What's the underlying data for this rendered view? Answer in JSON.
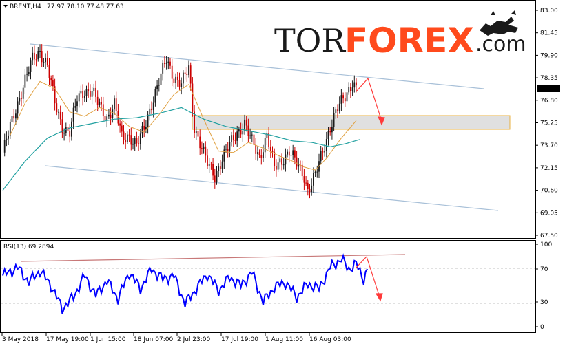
{
  "header": {
    "symbol_label": "BRENT,H4",
    "ohlc": "77.97 78.10 77.48 77.63"
  },
  "logo": {
    "part1": "TOR",
    "part2": "FOREX",
    "part3": ".com",
    "accent": "#ff4a1c",
    "icon": "bull-bear-icon"
  },
  "rsi_panel": {
    "label": "RSI(13) 69.2894",
    "line_color": "#0000ff",
    "resistance_color": "#c87878"
  },
  "colors": {
    "bull_candle": "#1a1a1a",
    "bear_candle": "#cc0000",
    "ma_fast": "#e0a040",
    "ma_slow": "#20a0a0",
    "channel": "#a8c0d8",
    "zone_fill": "#d8d8d8",
    "zone_border": "#e8b040",
    "arrow": "#ff3a3a"
  },
  "current_price": "77.63",
  "chart_data": [
    {
      "type": "candlestick",
      "symbol": "BRENT",
      "timeframe": "H4",
      "ylim": [
        67.5,
        83.0
      ],
      "yticks": [
        "83.00",
        "81.45",
        "79.90",
        "78.35",
        "76.80",
        "75.25",
        "73.70",
        "72.15",
        "70.60",
        "69.05",
        "67.50"
      ],
      "xticks": [
        "3 May 2018",
        "17 May 19:00",
        "1 Jun 15:00",
        "18 Jun 07:00",
        "2 Jul 23:00",
        "17 Jul 19:00",
        "1 Aug 11:00",
        "16 Aug 03:00"
      ],
      "price_anchors": [
        [
          0,
          73.2
        ],
        [
          6,
          75.8
        ],
        [
          12,
          78.2
        ],
        [
          16,
          79.6
        ],
        [
          20,
          80.2
        ],
        [
          24,
          79.2
        ],
        [
          28,
          76.6
        ],
        [
          32,
          75.0
        ],
        [
          36,
          74.6
        ],
        [
          40,
          76.9
        ],
        [
          44,
          77.5
        ],
        [
          48,
          77.4
        ],
        [
          52,
          76.4
        ],
        [
          56,
          75.6
        ],
        [
          60,
          76.5
        ],
        [
          64,
          74.2
        ],
        [
          68,
          74.4
        ],
        [
          72,
          73.7
        ],
        [
          76,
          74.8
        ],
        [
          80,
          76.6
        ],
        [
          84,
          78.1
        ],
        [
          88,
          79.6
        ],
        [
          92,
          78.4
        ],
        [
          96,
          77.9
        ],
        [
          100,
          79.0
        ],
        [
          103,
          75.0
        ],
        [
          106,
          73.9
        ],
        [
          110,
          72.4
        ],
        [
          114,
          71.6
        ],
        [
          118,
          72.8
        ],
        [
          122,
          73.7
        ],
        [
          126,
          74.6
        ],
        [
          130,
          75.2
        ],
        [
          134,
          73.9
        ],
        [
          138,
          72.9
        ],
        [
          142,
          74.4
        ],
        [
          146,
          72.1
        ],
        [
          150,
          72.7
        ],
        [
          154,
          73.3
        ],
        [
          158,
          72.4
        ],
        [
          162,
          71.6
        ],
        [
          164,
          70.6
        ],
        [
          168,
          71.6
        ],
        [
          172,
          73.3
        ],
        [
          176,
          75.0
        ],
        [
          180,
          76.2
        ],
        [
          184,
          77.1
        ],
        [
          188,
          78.1
        ],
        [
          190,
          77.6
        ]
      ],
      "ma_fast_anchors": [
        [
          4,
          74.4
        ],
        [
          12,
          76.6
        ],
        [
          20,
          78.1
        ],
        [
          28,
          77.6
        ],
        [
          36,
          76.0
        ],
        [
          44,
          75.7
        ],
        [
          52,
          76.3
        ],
        [
          60,
          75.9
        ],
        [
          68,
          75.0
        ],
        [
          76,
          74.6
        ],
        [
          84,
          75.8
        ],
        [
          92,
          77.2
        ],
        [
          100,
          77.9
        ],
        [
          108,
          75.5
        ],
        [
          116,
          73.3
        ],
        [
          124,
          73.2
        ],
        [
          132,
          73.9
        ],
        [
          140,
          73.5
        ],
        [
          148,
          73.0
        ],
        [
          156,
          72.6
        ],
        [
          162,
          72.2
        ],
        [
          168,
          72.0
        ],
        [
          174,
          72.8
        ],
        [
          182,
          74.2
        ],
        [
          190,
          75.4
        ]
      ],
      "ma_slow_anchors": [
        [
          0,
          70.6
        ],
        [
          12,
          72.6
        ],
        [
          24,
          74.2
        ],
        [
          36,
          74.9
        ],
        [
          48,
          75.2
        ],
        [
          60,
          75.5
        ],
        [
          72,
          75.6
        ],
        [
          84,
          75.9
        ],
        [
          96,
          76.3
        ],
        [
          108,
          75.5
        ],
        [
          120,
          75.0
        ],
        [
          132,
          74.7
        ],
        [
          144,
          74.4
        ],
        [
          156,
          74.0
        ],
        [
          166,
          73.9
        ],
        [
          176,
          73.6
        ],
        [
          184,
          73.8
        ],
        [
          192,
          74.1
        ]
      ],
      "channel_upper": [
        [
          79.4
        ],
        [
          78.2
        ]
      ],
      "channel_lower": [
        [
          72.1
        ],
        [
          69.2
        ]
      ],
      "resistance_zone": [
        75.6,
        75.0
      ],
      "projection_arrow": {
        "from": 78.35,
        "to": 75.2
      }
    },
    {
      "type": "line",
      "indicator": "RSI(13)",
      "value": 69.2894,
      "ylim": [
        0,
        100
      ],
      "yticks": [
        "100",
        "70",
        "30",
        "0"
      ],
      "levels": [
        70,
        30
      ],
      "rsi_anchors": [
        [
          0,
          62
        ],
        [
          8,
          72
        ],
        [
          14,
          54
        ],
        [
          20,
          68
        ],
        [
          26,
          50
        ],
        [
          32,
          22
        ],
        [
          38,
          36
        ],
        [
          44,
          62
        ],
        [
          50,
          38
        ],
        [
          56,
          56
        ],
        [
          62,
          34
        ],
        [
          68,
          66
        ],
        [
          74,
          46
        ],
        [
          80,
          70
        ],
        [
          86,
          58
        ],
        [
          92,
          62
        ],
        [
          98,
          28
        ],
        [
          104,
          46
        ],
        [
          110,
          64
        ],
        [
          116,
          44
        ],
        [
          122,
          60
        ],
        [
          128,
          50
        ],
        [
          134,
          66
        ],
        [
          140,
          30
        ],
        [
          146,
          48
        ],
        [
          152,
          54
        ],
        [
          158,
          36
        ],
        [
          164,
          52
        ],
        [
          170,
          46
        ],
        [
          176,
          72
        ],
        [
          182,
          82
        ],
        [
          186,
          70
        ],
        [
          190,
          76
        ],
        [
          194,
          58
        ],
        [
          196,
          69
        ]
      ]
    }
  ]
}
